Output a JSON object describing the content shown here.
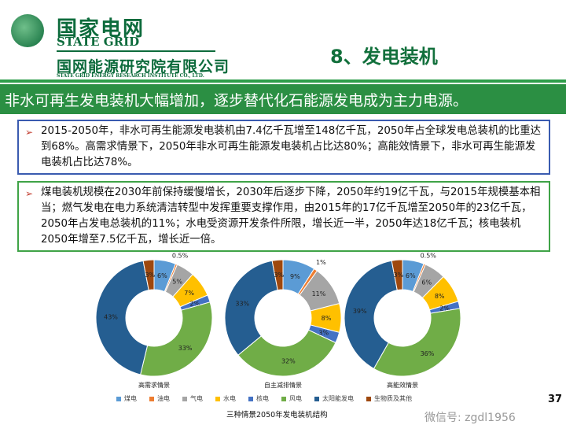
{
  "header": {
    "logo_cn": "国家电网",
    "logo_en": "STATE GRID",
    "org_cn": "国网能源研究院有限公司",
    "org_en": "STATE GRID ENERGY RESEARCH INSTITUTE CO., LTD.",
    "section_title": "8、发电装机"
  },
  "banner": "非水可再生发电装机大幅增加，逐步替代化石能源发电成为主力电源。",
  "bullets": [
    "2015-2050年，非水可再生能源发电装机由7.4亿千瓦增至148亿千瓦，2050年占全球发电总装机的比重达到68%。高需求情景下，2050年非水可再生能源发电装机占比达80%；高能效情景下，非水可再生能源发电装机占比达78%。",
    "煤电装机规模在2030年前保持缓慢增长，2030年后逐步下降，2050年约19亿千瓦，与2015年规模基本相当；燃气发电在电力系统清洁转型中发挥重要支撑作用，由2015年的17亿千瓦增至2050年的23亿千瓦，2050年占发电总装机的11%；水电受资源开发条件所限，增长近一半，2050年达18亿千瓦；核电装机2050年增至7.5亿千瓦，增长近一倍。"
  ],
  "chart_data": {
    "type": "pie",
    "title": "三种情景2050年发电装机结构",
    "categories": [
      "煤电",
      "油电",
      "气电",
      "水电",
      "核电",
      "风电",
      "太阳能发电",
      "生物质及其他"
    ],
    "colors": [
      "#5b9bd5",
      "#ed7d31",
      "#a5a5a5",
      "#ffc000",
      "#4472c4",
      "#70ad47",
      "#255e91",
      "#9e480e"
    ],
    "series": [
      {
        "name": "高需求情景",
        "values": [
          6,
          0.5,
          5,
          7,
          2,
          33,
          43,
          3
        ],
        "labels": [
          "6%",
          "0.5%",
          "5%",
          "7%",
          "2%",
          "33%",
          "43%",
          "3%"
        ]
      },
      {
        "name": "自主减排情景",
        "values": [
          9,
          1,
          11,
          8,
          3,
          32,
          33,
          3
        ],
        "labels": [
          "9%",
          "1%",
          "11%",
          "8%",
          "3%",
          "32%",
          "33%",
          "3%"
        ]
      },
      {
        "name": "高能效情景",
        "values": [
          6,
          0.5,
          6,
          8,
          2,
          36,
          39,
          3
        ],
        "labels": [
          "6%",
          "0.5%",
          "6%",
          "8%",
          "2%",
          "36%",
          "39%",
          "3%"
        ]
      }
    ]
  },
  "watermark": "微信号: zgdl1956",
  "page_number": "37"
}
